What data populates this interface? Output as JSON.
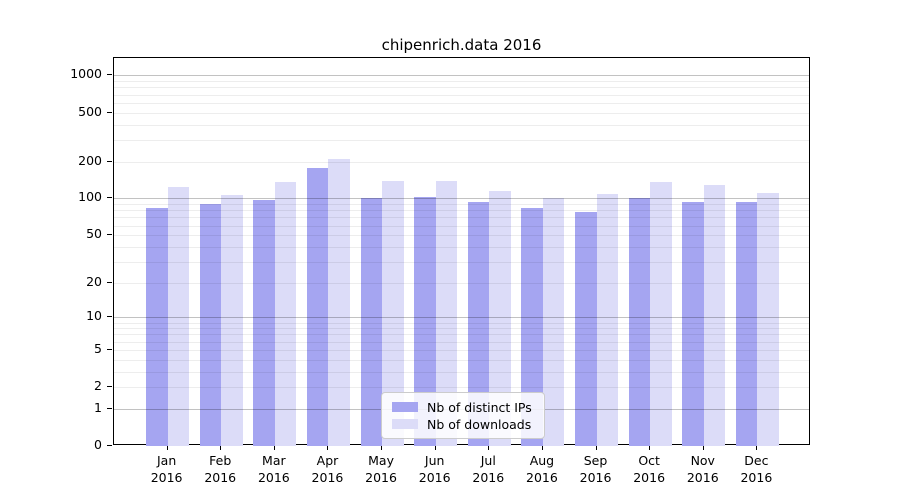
{
  "chart_data": {
    "type": "bar",
    "title": "chipenrich.data 2016",
    "yscale": "log1p",
    "grid": true,
    "legend_position": "bottom-center",
    "categories": [
      "Jan",
      "Feb",
      "Mar",
      "Apr",
      "May",
      "Jun",
      "Jul",
      "Aug",
      "Sep",
      "Oct",
      "Nov",
      "Dec"
    ],
    "year_label": "2016",
    "y_ticks": [
      0,
      1,
      2,
      5,
      10,
      20,
      50,
      100,
      200,
      500,
      1000
    ],
    "ylim": [
      0,
      1385
    ],
    "series": [
      {
        "name": "Nb of distinct IPs",
        "color": "#a5a5f1",
        "values": [
          84,
          90,
          97,
          177,
          100,
          102,
          94,
          83,
          78,
          101,
          94,
          93
        ]
      },
      {
        "name": "Nb of downloads",
        "color": "#dcdcf8",
        "values": [
          123,
          107,
          136,
          210,
          138,
          139,
          115,
          101,
          108,
          136,
          130,
          110
        ]
      }
    ],
    "colors": {
      "major_grid": "#c2c2c2",
      "minor_grid": "#ededed",
      "axis": "#000000",
      "legend_border": "#cccccc"
    }
  }
}
